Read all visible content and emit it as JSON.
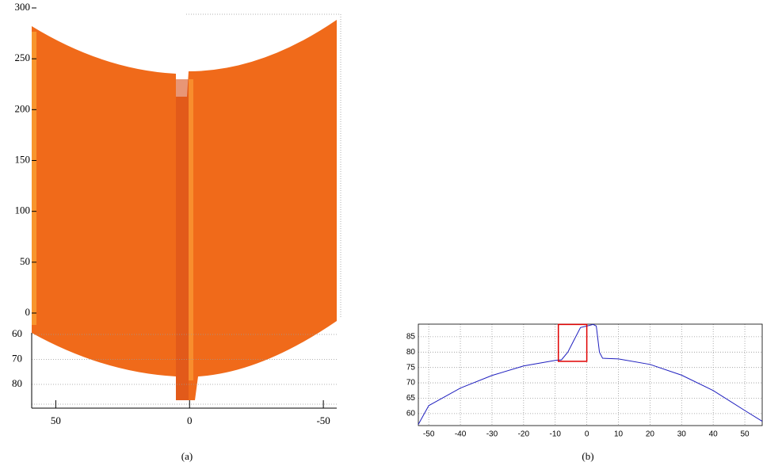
{
  "chart_data": [
    {
      "type": "surface",
      "caption": "(a)",
      "xlim": [
        59,
        -55
      ],
      "xticks": [
        50,
        0,
        -50
      ],
      "ylim": [
        0,
        300
      ],
      "yticks": [
        0,
        50,
        100,
        150,
        200,
        250,
        300
      ],
      "zlim": [
        60,
        80
      ],
      "zticks": [
        60,
        70,
        80
      ],
      "color": "#f06a1a"
    },
    {
      "type": "line",
      "caption": "(b)",
      "xlim": [
        -53.3,
        55.5
      ],
      "xticks": [
        -50,
        -40,
        -30,
        -20,
        -10,
        0,
        10,
        20,
        30,
        40,
        50
      ],
      "ylim": [
        56.1,
        89.1
      ],
      "yticks": [
        60,
        65,
        70,
        75,
        80,
        85
      ],
      "grid": true,
      "series": [
        {
          "color": "#1f1fbf",
          "x": [
            -53.3,
            -50,
            -40,
            -30,
            -20,
            -10,
            -8,
            -6,
            -4,
            -2,
            0,
            2,
            3,
            4,
            5,
            10,
            20,
            30,
            40,
            50,
            55.5
          ],
          "values": [
            56.5,
            62.6,
            68.3,
            72.4,
            75.5,
            77.3,
            77.5,
            80,
            84,
            88,
            88.5,
            89,
            88.5,
            80,
            78,
            77.8,
            76,
            72.5,
            67.5,
            61,
            57.5
          ]
        }
      ],
      "highlight_box": {
        "x": [
          -9,
          0
        ],
        "y": [
          77,
          89
        ],
        "color": "#e00000"
      }
    }
  ]
}
